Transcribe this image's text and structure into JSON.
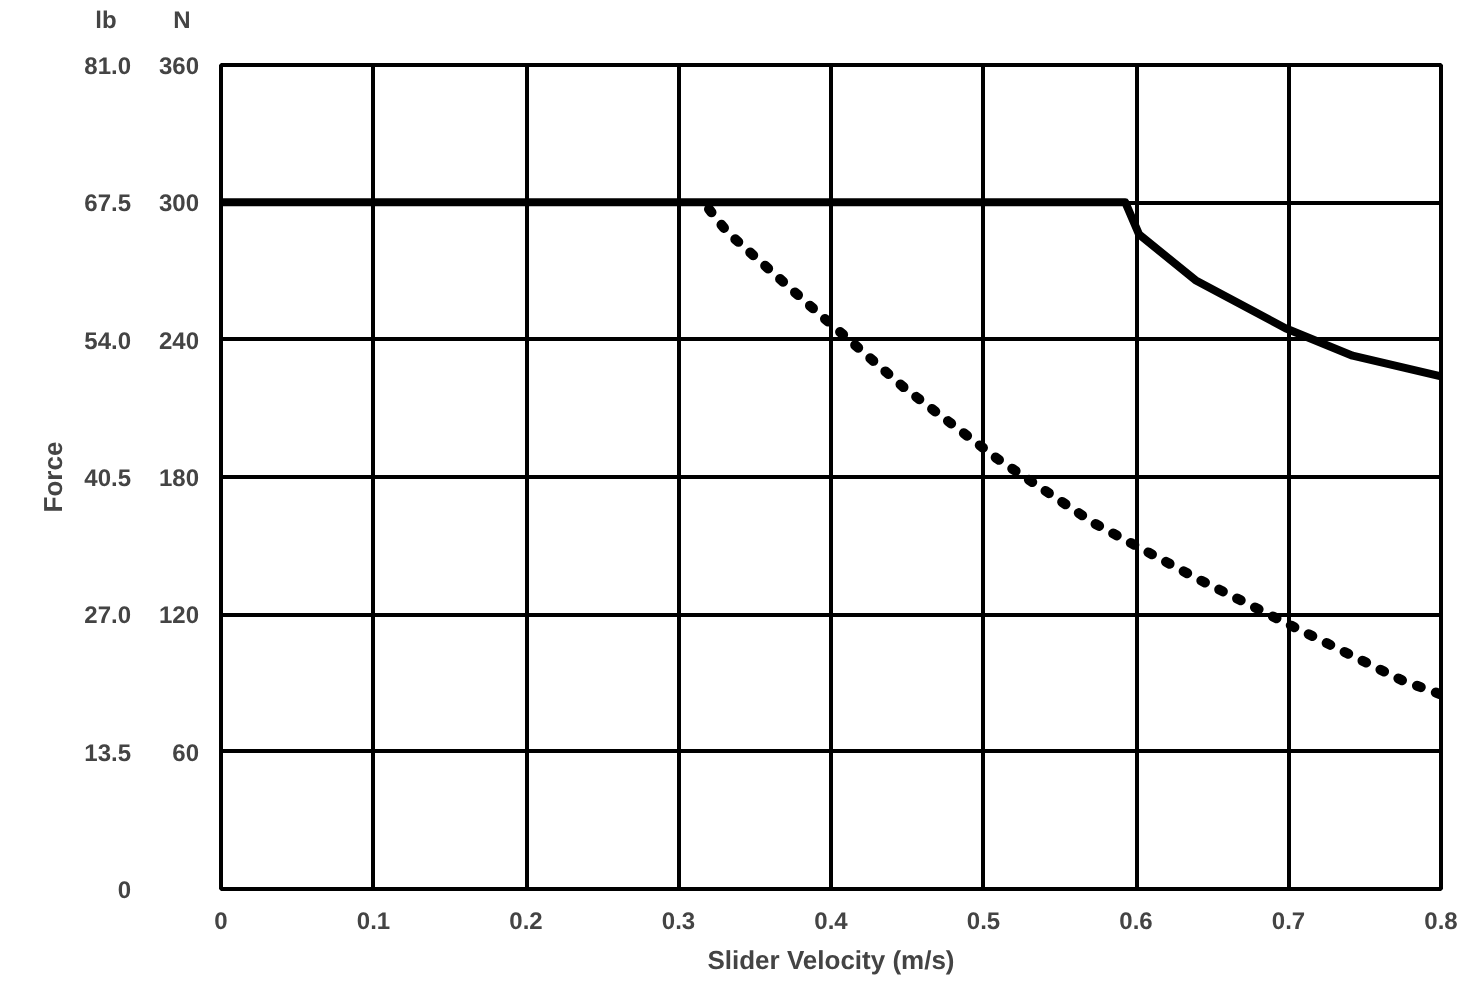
{
  "chart_data": {
    "type": "line",
    "xlabel": "Slider Velocity (m/s)",
    "ylabel": "Force",
    "annotations": [
      "lb",
      "N"
    ],
    "xlim": [
      0,
      0.8
    ],
    "xticks": [
      0,
      0.1,
      0.2,
      0.3,
      0.4,
      0.5,
      0.6,
      0.7,
      0.8
    ],
    "ylim": [
      0,
      81
    ],
    "yticks": [
      {
        "value": 0,
        "label": "0"
      },
      {
        "value": 13.5,
        "label": "13.5"
      },
      {
        "value": 27,
        "label": "27.0"
      },
      {
        "value": 40.5,
        "label": "40.5"
      },
      {
        "value": 54,
        "label": "54.0"
      },
      {
        "value": 67.5,
        "label": "67.5"
      },
      {
        "value": 81,
        "label": "81.0"
      }
    ],
    "y2lim": [
      0,
      360
    ],
    "y2ticks": [
      60,
      120,
      180,
      240,
      300,
      360
    ],
    "grid": true,
    "marker": "none",
    "series": [
      {
        "color": "#000000",
        "line_style": "solid",
        "axis": "y2",
        "x": [
          0,
          0.593,
          0.602,
          0.639,
          0.698,
          0.742,
          0.8
        ],
        "values": [
          300,
          300,
          286,
          266,
          245,
          233,
          224
        ]
      },
      {
        "color": "#000000",
        "line_style": "dotted",
        "axis": "y2",
        "x": [
          0.32,
          0.332,
          0.391,
          0.448,
          0.509,
          0.572,
          0.639,
          0.702,
          0.775,
          0.8
        ],
        "values": [
          297,
          287,
          252,
          219,
          188,
          160,
          136,
          115,
          91,
          85
        ]
      }
    ]
  }
}
